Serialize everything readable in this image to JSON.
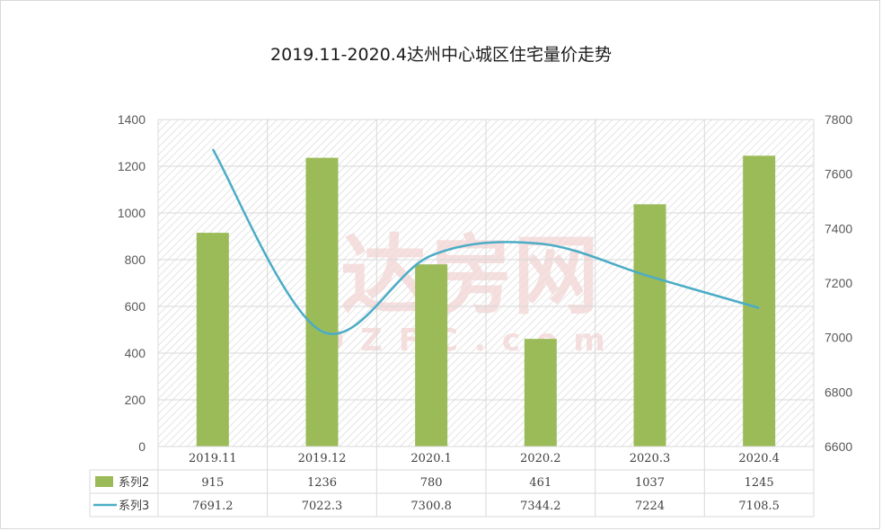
{
  "watermark": {
    "main": "达房网",
    "sub": "OZFC.com"
  },
  "chart_data": {
    "type": "bar+line",
    "title": "2019.11-2020.4达州中心城区住宅量价走势",
    "categories": [
      "2019.11",
      "2019.12",
      "2020.1",
      "2020.2",
      "2020.3",
      "2020.4"
    ],
    "series": [
      {
        "name": "系列2",
        "type": "bar",
        "axis": "left",
        "color": "#9bbb59",
        "values": [
          915,
          1236,
          780,
          461,
          1037,
          1245
        ],
        "labels": [
          "915",
          "1236",
          "780",
          "461",
          "1037",
          "1245"
        ]
      },
      {
        "name": "系列3",
        "type": "line",
        "axis": "right",
        "color": "#4bacc6",
        "values": [
          7691.2,
          7022.3,
          7300.8,
          7344.2,
          7224,
          7108.5
        ],
        "labels": [
          "7691.2",
          "7022.3",
          "7300.8",
          "7344.2",
          "7224",
          "7108.5"
        ]
      }
    ],
    "y_left": {
      "min": 0,
      "max": 1400,
      "ticks": [
        "0",
        "200",
        "400",
        "600",
        "800",
        "1000",
        "1200",
        "1400"
      ]
    },
    "y_right": {
      "min": 6600,
      "max": 7800,
      "ticks": [
        "6600",
        "6800",
        "7000",
        "7200",
        "7400",
        "7600",
        "7800"
      ]
    },
    "grid": true,
    "data_table": true
  }
}
